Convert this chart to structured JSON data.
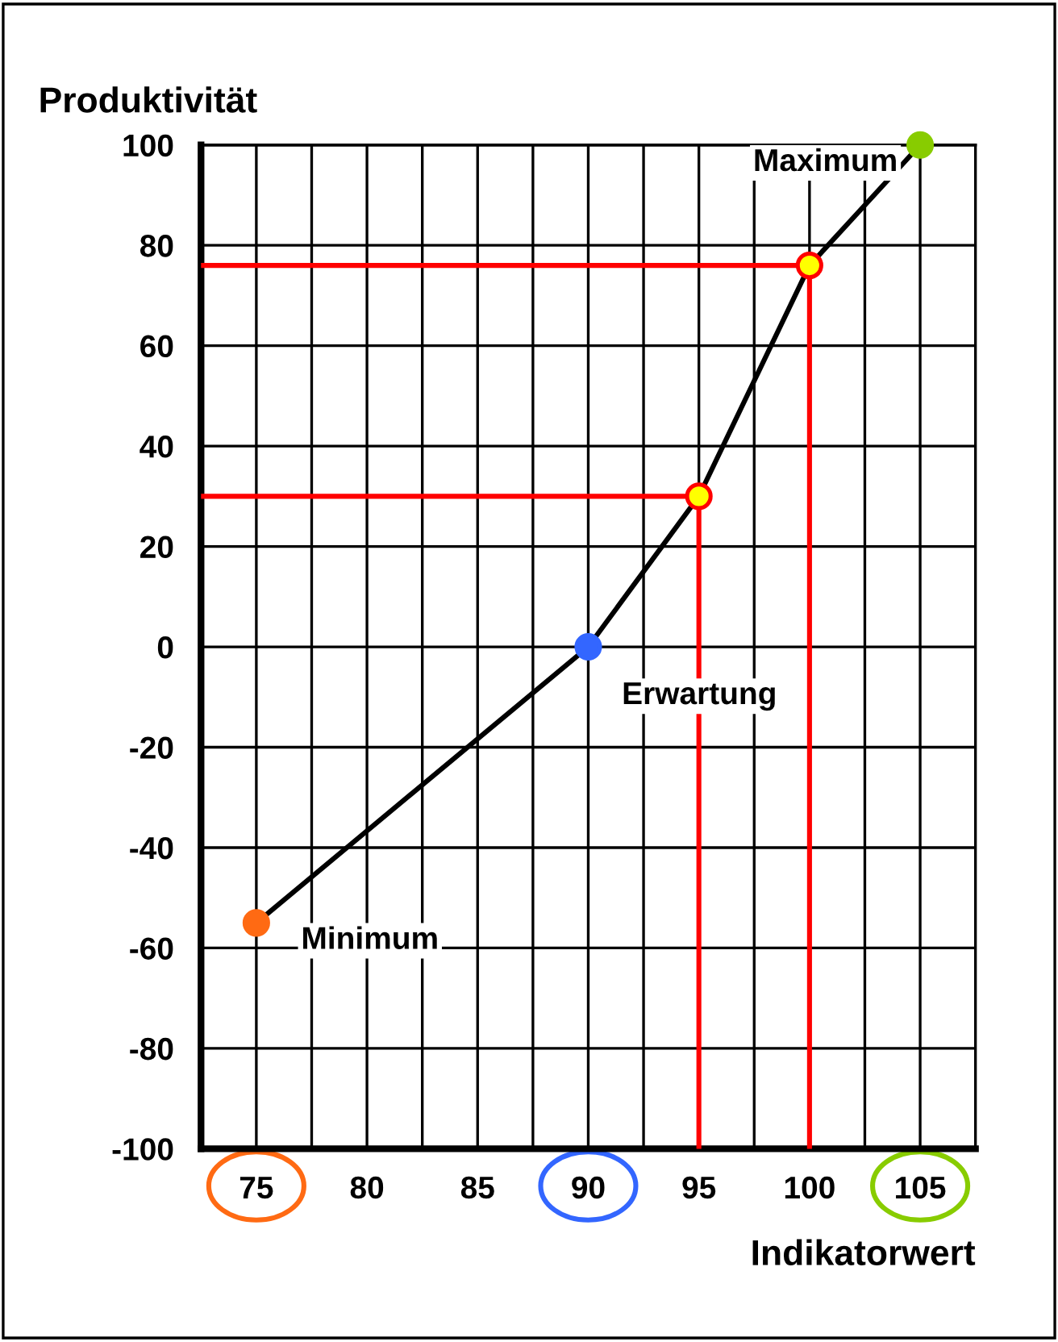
{
  "chart_data": {
    "type": "line",
    "xlabel": "Indikatorwert",
    "ylabel": "Produktivität",
    "xlim": [
      72.5,
      107.5
    ],
    "xticks": [
      {
        "value": 72.5,
        "label": null
      },
      75,
      {
        "value": 77.5,
        "label": null
      },
      80,
      {
        "value": 82.5,
        "label": null
      },
      85,
      {
        "value": 87.5,
        "label": null
      },
      90,
      {
        "value": 92.5,
        "label": null
      },
      95,
      {
        "value": 97.5,
        "label": null
      },
      100,
      {
        "value": 102.5,
        "label": null
      },
      105,
      {
        "value": 107.5,
        "label": null
      }
    ],
    "ylim": [
      -100,
      100
    ],
    "yticks": [
      -100,
      -80,
      -60,
      -40,
      -20,
      0,
      20,
      40,
      60,
      80,
      100
    ],
    "grid": true,
    "series": [
      {
        "type": "line",
        "color": "#ff0000",
        "x": [
          72.5,
          95,
          95
        ],
        "values": [
          30,
          30,
          -100
        ],
        "marker": "none"
      },
      {
        "type": "line",
        "color": "#ff0000",
        "x": [
          72.5,
          100,
          100
        ],
        "values": [
          76,
          76,
          -100
        ],
        "marker": "none"
      },
      {
        "color": "#000000",
        "x": [
          75,
          90,
          95,
          100,
          105
        ],
        "values": [
          -55,
          0,
          30,
          76,
          100
        ],
        "marker": "circle",
        "colors": [
          "#ff6a13",
          "#3366ff",
          "#ffff00",
          "#ffff00",
          "#88cc00"
        ]
      }
    ],
    "annotations": [
      {
        "text": "Minimum",
        "x": 75,
        "y": -55
      },
      {
        "text": "Erwartung",
        "x": 90,
        "y": 0
      },
      {
        "text": "Maximum",
        "x": 105,
        "y": 100
      }
    ]
  }
}
